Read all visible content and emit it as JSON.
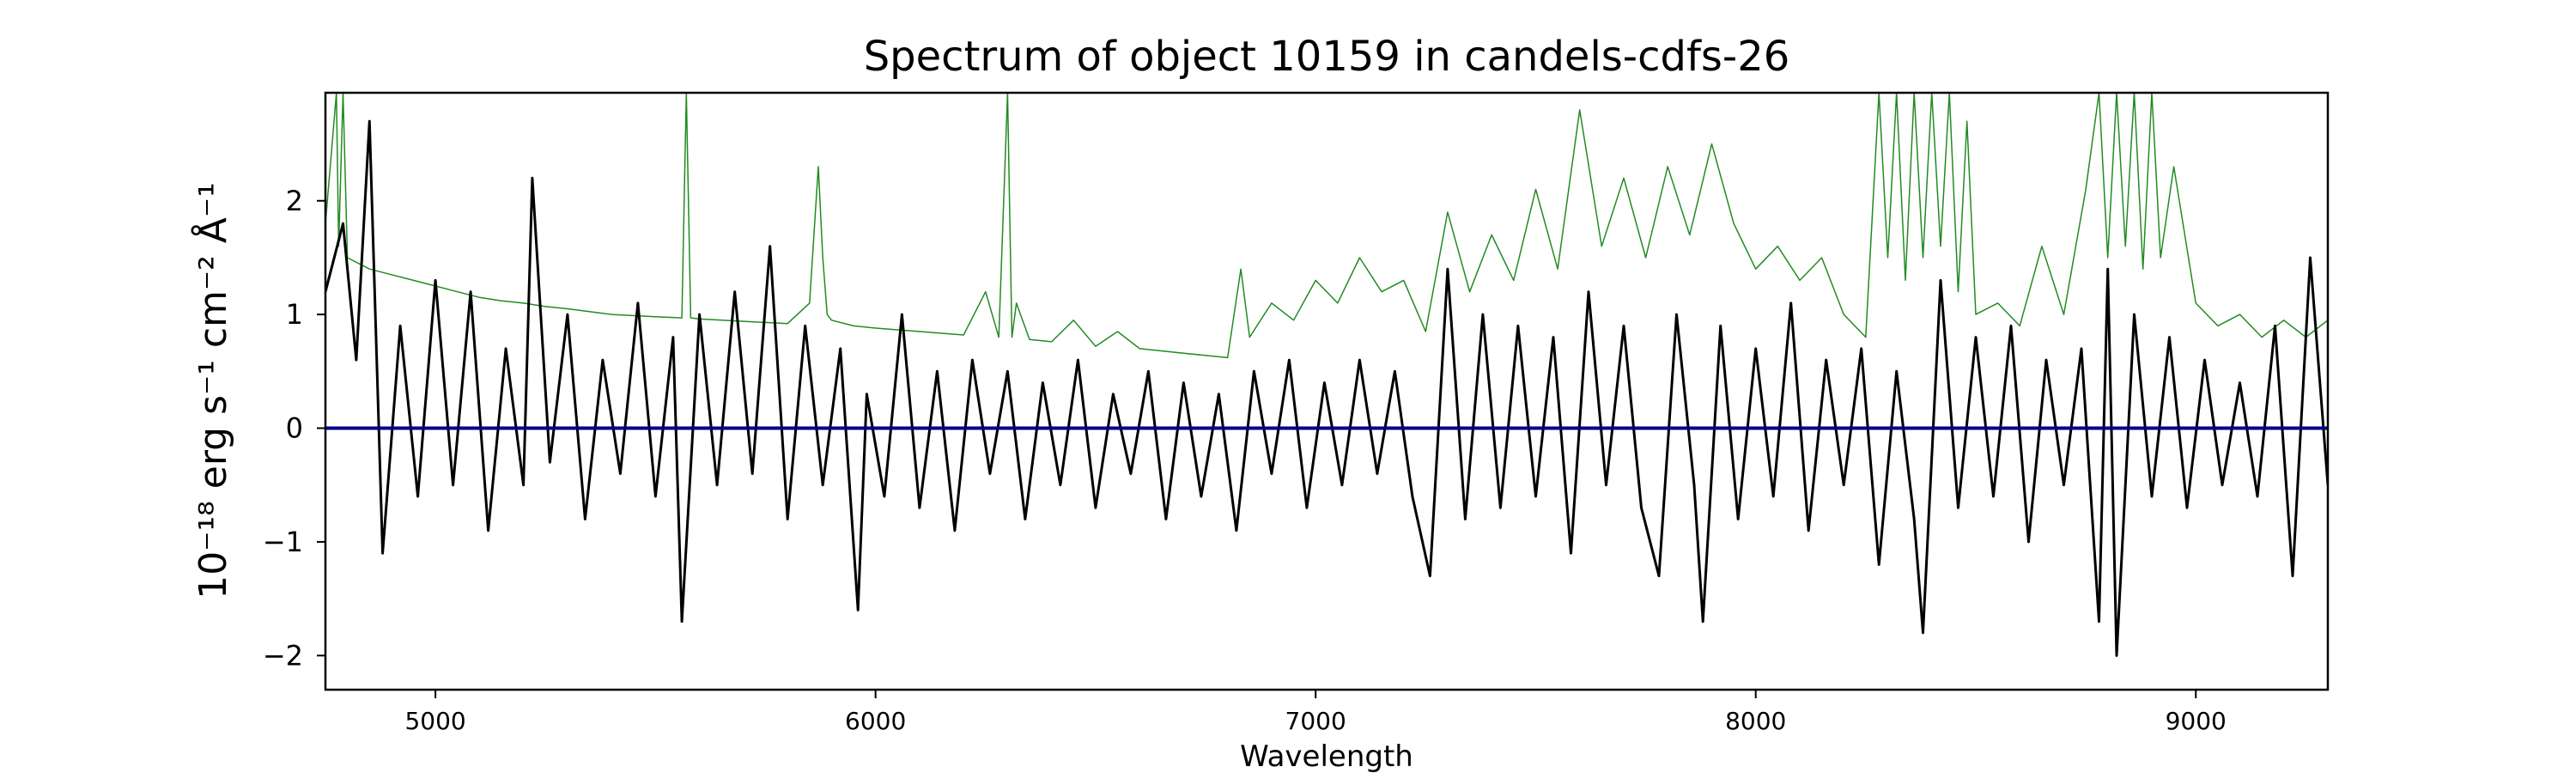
{
  "chart_data": {
    "type": "line",
    "title": "Spectrum of object 10159 in candels-cdfs-26",
    "xlabel": "Wavelength",
    "ylabel": "10⁻¹⁸ erg s⁻¹ cm⁻² Å⁻¹",
    "xlim": [
      4750,
      9300
    ],
    "ylim": [
      -2.3,
      2.95
    ],
    "xticks": [
      5000,
      6000,
      7000,
      8000,
      9000
    ],
    "yticks": [
      -2,
      -1,
      0,
      1,
      2
    ],
    "grid": false,
    "series": [
      {
        "id": "flux",
        "color": "#000000",
        "x": [
          4750,
          4790,
          4820,
          4850,
          4880,
          4920,
          4960,
          5000,
          5040,
          5080,
          5120,
          5160,
          5200,
          5220,
          5260,
          5300,
          5340,
          5380,
          5420,
          5460,
          5500,
          5540,
          5560,
          5600,
          5640,
          5680,
          5720,
          5760,
          5800,
          5840,
          5880,
          5920,
          5960,
          5980,
          6020,
          6060,
          6100,
          6140,
          6180,
          6220,
          6260,
          6300,
          6340,
          6380,
          6420,
          6460,
          6500,
          6540,
          6580,
          6620,
          6660,
          6700,
          6740,
          6780,
          6820,
          6860,
          6900,
          6940,
          6980,
          7020,
          7060,
          7100,
          7140,
          7180,
          7220,
          7260,
          7300,
          7340,
          7380,
          7420,
          7460,
          7500,
          7540,
          7580,
          7620,
          7660,
          7700,
          7740,
          7780,
          7820,
          7860,
          7880,
          7920,
          7960,
          8000,
          8040,
          8080,
          8120,
          8160,
          8200,
          8240,
          8280,
          8320,
          8360,
          8380,
          8420,
          8460,
          8500,
          8540,
          8580,
          8620,
          8660,
          8700,
          8740,
          8780,
          8800,
          8820,
          8860,
          8900,
          8940,
          8980,
          9020,
          9060,
          9100,
          9140,
          9180,
          9220,
          9260,
          9300
        ],
        "y": [
          1.2,
          1.8,
          0.6,
          2.7,
          -1.1,
          0.9,
          -0.6,
          1.3,
          -0.5,
          1.2,
          -0.9,
          0.7,
          -0.5,
          2.2,
          -0.3,
          1.0,
          -0.8,
          0.6,
          -0.4,
          1.1,
          -0.6,
          0.8,
          -1.7,
          1.0,
          -0.5,
          1.2,
          -0.4,
          1.6,
          -0.8,
          0.9,
          -0.5,
          0.7,
          -1.6,
          0.3,
          -0.6,
          1.0,
          -0.7,
          0.5,
          -0.9,
          0.6,
          -0.4,
          0.5,
          -0.8,
          0.4,
          -0.5,
          0.6,
          -0.7,
          0.3,
          -0.4,
          0.5,
          -0.8,
          0.4,
          -0.6,
          0.3,
          -0.9,
          0.5,
          -0.4,
          0.6,
          -0.7,
          0.4,
          -0.5,
          0.6,
          -0.4,
          0.5,
          -0.6,
          -1.3,
          1.4,
          -0.8,
          1.0,
          -0.7,
          0.9,
          -0.6,
          0.8,
          -1.1,
          1.2,
          -0.5,
          0.9,
          -0.7,
          -1.3,
          1.0,
          -0.5,
          -1.7,
          0.9,
          -0.8,
          0.7,
          -0.6,
          1.1,
          -0.9,
          0.6,
          -0.5,
          0.7,
          -1.2,
          0.5,
          -0.8,
          -1.8,
          1.3,
          -0.7,
          0.8,
          -0.6,
          0.9,
          -1.0,
          0.6,
          -0.5,
          0.7,
          -1.7,
          1.4,
          -2.0,
          1.0,
          -0.6,
          0.8,
          -0.7,
          0.6,
          -0.5,
          0.4,
          -0.6,
          0.9,
          -1.3,
          1.5,
          -0.5
        ]
      },
      {
        "id": "model",
        "color": "#228b22",
        "x": [
          4750,
          4775,
          4780,
          4790,
          4800,
          4850,
          4900,
          4950,
          5000,
          5050,
          5100,
          5150,
          5200,
          5250,
          5300,
          5400,
          5500,
          5560,
          5570,
          5580,
          5600,
          5700,
          5800,
          5850,
          5870,
          5880,
          5890,
          5900,
          5950,
          6000,
          6100,
          6200,
          6250,
          6280,
          6300,
          6310,
          6320,
          6350,
          6400,
          6450,
          6500,
          6550,
          6600,
          6700,
          6800,
          6830,
          6850,
          6900,
          6950,
          7000,
          7050,
          7100,
          7150,
          7200,
          7250,
          7300,
          7350,
          7400,
          7450,
          7500,
          7550,
          7600,
          7650,
          7700,
          7750,
          7800,
          7850,
          7900,
          7950,
          8000,
          8050,
          8100,
          8150,
          8200,
          8250,
          8280,
          8300,
          8320,
          8340,
          8360,
          8380,
          8400,
          8420,
          8440,
          8460,
          8480,
          8500,
          8550,
          8600,
          8650,
          8700,
          8750,
          8780,
          8800,
          8820,
          8840,
          8860,
          8880,
          8900,
          8920,
          8950,
          9000,
          9050,
          9100,
          9150,
          9200,
          9250,
          9300
        ],
        "y": [
          1.8,
          2.95,
          1.6,
          2.95,
          1.5,
          1.4,
          1.35,
          1.3,
          1.25,
          1.2,
          1.15,
          1.12,
          1.1,
          1.07,
          1.05,
          1.0,
          0.98,
          0.97,
          2.95,
          0.97,
          0.96,
          0.94,
          0.92,
          1.1,
          2.3,
          1.5,
          1.0,
          0.95,
          0.9,
          0.88,
          0.85,
          0.82,
          1.2,
          0.8,
          2.95,
          0.8,
          1.1,
          0.78,
          0.76,
          0.95,
          0.72,
          0.85,
          0.7,
          0.66,
          0.62,
          1.4,
          0.8,
          1.1,
          0.95,
          1.3,
          1.1,
          1.5,
          1.2,
          1.3,
          0.85,
          1.9,
          1.2,
          1.7,
          1.3,
          2.1,
          1.4,
          2.8,
          1.6,
          2.2,
          1.5,
          2.3,
          1.7,
          2.5,
          1.8,
          1.4,
          1.6,
          1.3,
          1.5,
          1.0,
          0.8,
          2.95,
          1.5,
          2.95,
          1.3,
          2.95,
          1.5,
          2.95,
          1.6,
          2.95,
          1.2,
          2.7,
          1.0,
          1.1,
          0.9,
          1.6,
          1.0,
          2.1,
          2.95,
          1.5,
          2.95,
          1.6,
          2.95,
          1.4,
          2.95,
          1.5,
          2.3,
          1.1,
          0.9,
          1.0,
          0.8,
          0.95,
          0.8,
          0.95
        ]
      },
      {
        "id": "continuum",
        "color": "#00008b",
        "x": [
          4750,
          9300
        ],
        "y": [
          0,
          0
        ]
      }
    ]
  }
}
